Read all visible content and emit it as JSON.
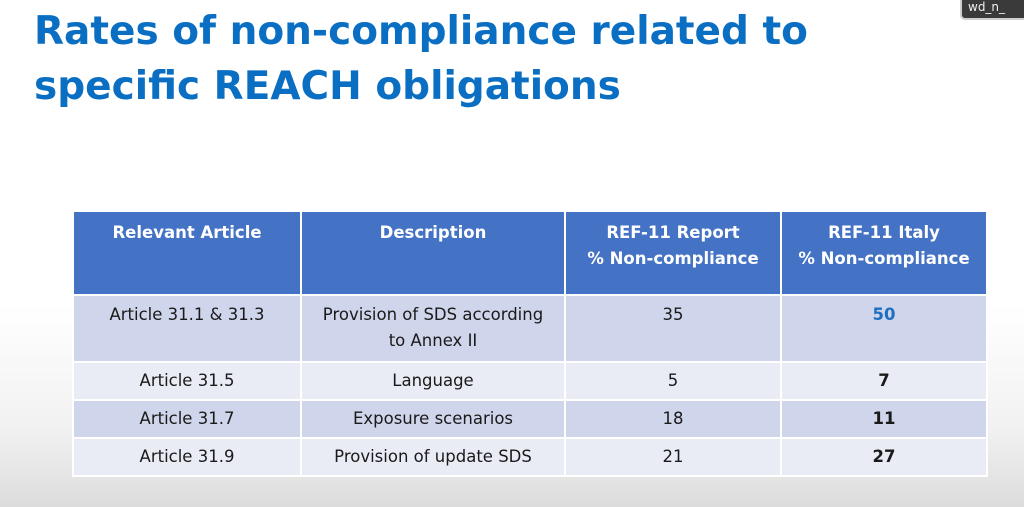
{
  "slide": {
    "title": "Rates of non-compliance related to specific REACH obligations",
    "camera_label": "wd_n_"
  },
  "table": {
    "headers": [
      [
        "Relevant Article"
      ],
      [
        "Description"
      ],
      [
        "REF-11 Report",
        "% Non-compliance"
      ],
      [
        "REF-11 Italy",
        "% Non-compliance"
      ]
    ],
    "rows": [
      {
        "article": "Article 31.1 & 31.3",
        "description_lines": [
          "Provision of SDS according",
          "to Annex II"
        ],
        "report": "35",
        "italy": "50"
      },
      {
        "article": "Article 31.5",
        "description_lines": [
          "Language"
        ],
        "report": "5",
        "italy": "7"
      },
      {
        "article": "Article 31.7",
        "description_lines": [
          "Exposure scenarios"
        ],
        "report": "18",
        "italy": "11"
      },
      {
        "article": "Article 31.9",
        "description_lines": [
          "Provision of update SDS"
        ],
        "report": "21",
        "italy": "27"
      }
    ]
  },
  "colors": {
    "title": "#0a6fc2",
    "header_bg": "#4472c4",
    "row_dark": "#cfd5ea",
    "row_light": "#e9ebf5",
    "highlight_value": "#1e6fc0"
  }
}
